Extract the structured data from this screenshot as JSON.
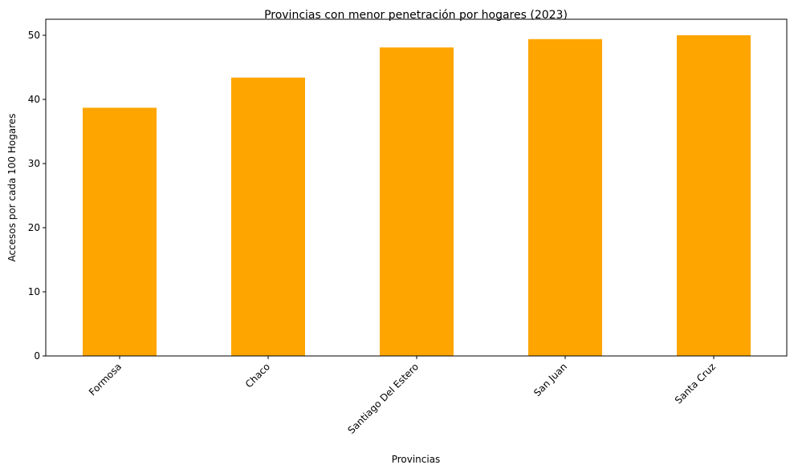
{
  "chart_data": {
    "type": "bar",
    "title": "Provincias con menor penetración por hogares (2023)",
    "xlabel": "Provincias",
    "ylabel": "Accesos por cada 100 Hogares",
    "categories": [
      "Formosa",
      "Chaco",
      "Santiago Del Estero",
      "San Juan",
      "Santa Cruz"
    ],
    "values": [
      38.7,
      43.4,
      48.1,
      49.4,
      50.0
    ],
    "ylim": [
      0,
      52.5
    ],
    "yticks": [
      0,
      10,
      20,
      30,
      40,
      50
    ],
    "ytick_labels": [
      "0",
      "10",
      "20",
      "30",
      "40",
      "50"
    ],
    "grid": false,
    "bar_color": "#FFA500"
  }
}
